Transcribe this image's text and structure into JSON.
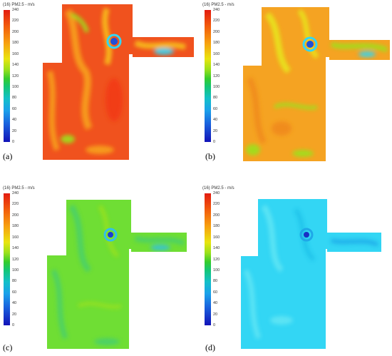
{
  "colorbar": {
    "title": "(16) PM2.5 - m/s",
    "ticks": [
      "240",
      "220",
      "200",
      "180",
      "160",
      "140",
      "120",
      "100",
      "80",
      "60",
      "40",
      "20",
      "0"
    ]
  },
  "panels": [
    {
      "label": "(a)",
      "level": "high",
      "base_color": "#f0521e",
      "accent_color": "#f7a21a",
      "spot_color": "#1f4fd8"
    },
    {
      "label": "(b)",
      "level": "upper-mid",
      "base_color": "#f5a322",
      "accent_color": "#e7e61c",
      "spot_color": "#1f4fd8"
    },
    {
      "label": "(c)",
      "level": "mid",
      "base_color": "#6fde34",
      "accent_color": "#46cf6e",
      "spot_color": "#1d3ad6"
    },
    {
      "label": "(d)",
      "level": "low",
      "base_color": "#33d6f4",
      "accent_color": "#64e6f4",
      "spot_color": "#1b2fc4"
    }
  ]
}
